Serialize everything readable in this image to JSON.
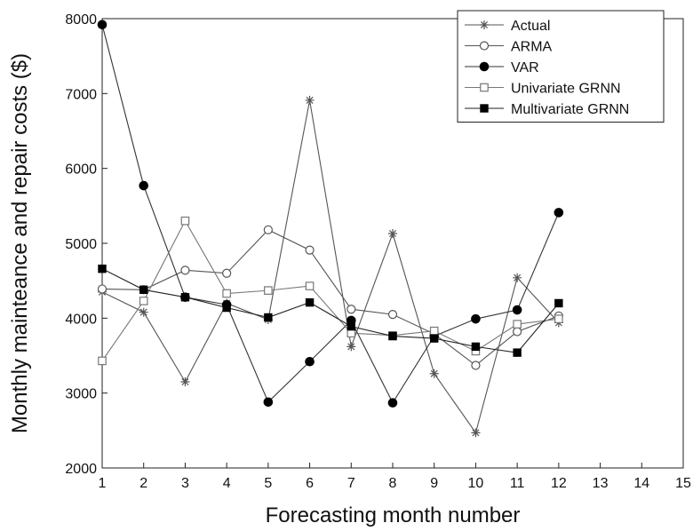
{
  "chart_data": {
    "type": "line",
    "title": "",
    "xlabel": "Forecasting month number",
    "ylabel": "Monthly mainteance and repair costs ($)",
    "xlim": [
      1,
      15
    ],
    "ylim": [
      2000,
      8000
    ],
    "x_ticks": [
      "1",
      "2",
      "3",
      "4",
      "5",
      "6",
      "7",
      "8",
      "9",
      "10",
      "11",
      "12",
      "13",
      "14",
      "15"
    ],
    "y_ticks": [
      "2000",
      "3000",
      "4000",
      "5000",
      "6000",
      "7000",
      "8000"
    ],
    "grid": false,
    "legend_position": "top-right",
    "x": [
      1,
      2,
      3,
      4,
      5,
      6,
      7,
      8,
      9,
      10,
      11,
      12
    ],
    "series": [
      {
        "name": "Actual",
        "marker": "asterisk",
        "color": "#555555",
        "values": [
          4350,
          4080,
          3150,
          4200,
          3980,
          6910,
          3620,
          5130,
          3260,
          2470,
          4540,
          3940
        ]
      },
      {
        "name": "ARMA",
        "marker": "open-circle",
        "color": "#555555",
        "values": [
          4390,
          4380,
          4640,
          4600,
          5180,
          4910,
          4120,
          4050,
          3790,
          3370,
          3820,
          4030
        ]
      },
      {
        "name": "VAR",
        "marker": "filled-circle",
        "color": "#333333",
        "values": [
          7920,
          5770,
          4280,
          4180,
          2880,
          3420,
          3970,
          2870,
          3760,
          3990,
          4110,
          5410
        ]
      },
      {
        "name": "Univariate GRNN",
        "marker": "open-square",
        "color": "#777777",
        "values": [
          3430,
          4230,
          5300,
          4330,
          4370,
          4430,
          3800,
          3770,
          3830,
          3560,
          3920,
          3990
        ]
      },
      {
        "name": "Multivariate GRNN",
        "marker": "filled-square",
        "color": "#222222",
        "values": [
          4660,
          4380,
          4280,
          4140,
          4010,
          4210,
          3890,
          3760,
          3730,
          3620,
          3540,
          4200
        ]
      }
    ]
  }
}
